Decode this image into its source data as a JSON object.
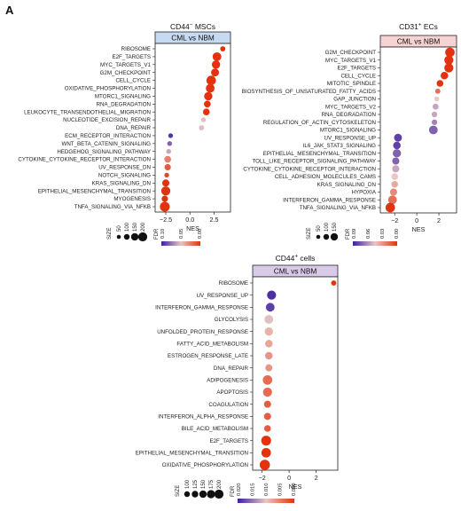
{
  "figure": {
    "panel_letter": "A"
  },
  "chart_data": [
    {
      "type": "scatter",
      "id": "msc",
      "title_base": "CD44",
      "title_sup": "−",
      "title_rest": " MSCs",
      "subtitle": "CML vs NBM",
      "subtitle_bg": "#c6daf2",
      "xlabel": "NES",
      "xticks": [
        -2.5,
        0.0,
        2.5
      ],
      "xlim": [
        -3.6,
        4.2
      ],
      "terms": [
        "RIBOSOME",
        "E2F_TARGETS",
        "MYC_TARGETS_V1",
        "G2M_CHECKPOINT",
        "CELL_CYCLE",
        "OXIDATIVE_PHOSPHORYLATION",
        "MTORC1_SIGNALING",
        "RNA_DEGRADATION",
        "LEUKOCYTE_TRANSENDOTHELIAL_MIGRATION",
        "NUCLEOTIDE_EXCISION_REPAIR",
        "DNA_REPAIR",
        "ECM_RECEPTOR_INTERACTION",
        "WNT_BETA_CATENIN_SIGNALING",
        "HEDGEHOG_SIGNALING_PATHWAY",
        "CYTOKINE_CYTOKINE_RECEPTOR_INTERACTION",
        "UV_RESPONSE_DN",
        "NOTCH_SIGNALING",
        "KRAS_SIGNALING_DN",
        "EPITHELIAL_MESENCHYMAL_TRANSITION",
        "MYOGENESIS",
        "TNFA_SIGNALING_VIA_NFKB"
      ],
      "nes": [
        3.4,
        2.8,
        2.7,
        2.6,
        2.2,
        2.1,
        1.9,
        1.8,
        1.7,
        1.4,
        1.2,
        -2.0,
        -2.1,
        -2.2,
        -2.3,
        -2.3,
        -2.4,
        -2.5,
        -2.5,
        -2.6,
        -2.6
      ],
      "size": [
        60,
        150,
        140,
        130,
        170,
        150,
        140,
        100,
        100,
        50,
        60,
        50,
        50,
        50,
        100,
        90,
        50,
        110,
        160,
        90,
        180
      ],
      "fdr": [
        0.0,
        0.0,
        0.0,
        0.0,
        0.0,
        0.0,
        0.0,
        0.0,
        0.0,
        0.07,
        0.08,
        0.14,
        0.12,
        0.09,
        0.04,
        0.02,
        0.01,
        0.0,
        0.0,
        0.0,
        0.0
      ],
      "size_legend": {
        "title": "SIZE",
        "values": [
          50,
          100,
          150,
          200
        ]
      },
      "color_legend": {
        "title": "FDR",
        "ticks": [
          "0.10",
          "0.05",
          "0.00"
        ],
        "max": 0.15
      }
    },
    {
      "type": "scatter",
      "id": "ec",
      "title_base": "CD31",
      "title_sup": "+",
      "title_rest": " ECs",
      "subtitle": "CML vs NBM",
      "subtitle_bg": "#f6d3d2",
      "xlabel": "NES",
      "xticks": [
        -2,
        0,
        2
      ],
      "xlim": [
        -3.3,
        3.6
      ],
      "terms": [
        "G2M_CHECKPOINT",
        "MYC_TARGETS_V1",
        "E2F_TARGETS",
        "CELL_CYCLE",
        "MITOTIC_SPINDLE",
        "BIOSYNTHESIS_OF_UNSATURATED_FATTY_ACIDS",
        "GAP_JUNCTION",
        "MYC_TARGETS_V2",
        "RNA_DEGRADATION",
        "REGULATION_OF_ACTIN_CYTOSKELETON",
        "MTORC1_SIGNALING",
        "UV_RESPONSE_UP",
        "IL6_JAK_STAT3_SIGNALING",
        "EPITHELIAL_MESENCHYMAL_TRANSITION",
        "TOLL_LIKE_RECEPTOR_SIGNALING_PATHWAY",
        "CYTOKINE_CYTOKINE_RECEPTOR_INTERACTION",
        "CELL_ADHESION_MOLECULES_CAMS",
        "KRAS_SIGNALING_DN",
        "HYPOXIA",
        "INTERFERON_GAMMA_RESPONSE",
        "TNFA_SIGNALING_VIA_NFKB"
      ],
      "nes": [
        3.0,
        2.9,
        2.9,
        2.5,
        2.1,
        1.9,
        1.8,
        1.7,
        1.6,
        1.6,
        1.5,
        -1.7,
        -1.8,
        -1.8,
        -1.9,
        -1.9,
        -2.0,
        -2.0,
        -2.1,
        -2.2,
        -2.4
      ],
      "size": [
        170,
        160,
        160,
        120,
        100,
        60,
        50,
        80,
        70,
        70,
        150,
        130,
        120,
        140,
        110,
        110,
        100,
        100,
        110,
        150,
        170
      ],
      "fdr": [
        0.0,
        0.0,
        0.0,
        0.0,
        0.0,
        0.02,
        0.05,
        0.06,
        0.06,
        0.07,
        0.08,
        0.09,
        0.09,
        0.08,
        0.08,
        0.06,
        0.05,
        0.04,
        0.03,
        0.02,
        0.0
      ],
      "size_legend": {
        "title": "SIZE",
        "values": [
          50,
          100,
          150
        ]
      },
      "color_legend": {
        "title": "FDR",
        "ticks": [
          "0.09",
          "0.06",
          "0.03",
          "0.00"
        ],
        "max": 0.1
      }
    },
    {
      "type": "scatter",
      "id": "cd44",
      "title_base": "CD44",
      "title_sup": "+",
      "title_rest": " cells",
      "subtitle": "CML vs NBM",
      "subtitle_bg": "#d9cbe8",
      "xlabel": "NES",
      "xticks": [
        -2,
        0,
        2
      ],
      "xlim": [
        -2.7,
        3.6
      ],
      "terms": [
        "RIBOSOME",
        "UV_RESPONSE_UP",
        "INTERFERON_GAMMA_RESPONSE",
        "GLYCOLYSIS",
        "UNFOLDED_PROTEIN_RESPONSE",
        "FATTY_ACID_METABOLISM",
        "ESTROGEN_RESPONSE_LATE",
        "DNA_REPAIR",
        "ADIPOGENESIS",
        "APOPTOSIS",
        "COAGULATION",
        "INTERFERON_ALPHA_RESPONSE",
        "BILE_ACID_METABOLISM",
        "E2F_TARGETS",
        "EPITHELIAL_MESENCHYMAL_TRANSITION",
        "OXIDATIVE_PHOSPHORYLATION"
      ],
      "nes": [
        3.3,
        -1.3,
        -1.4,
        -1.5,
        -1.5,
        -1.5,
        -1.5,
        -1.5,
        -1.6,
        -1.6,
        -1.6,
        -1.6,
        -1.6,
        -1.7,
        -1.7,
        -1.8
      ],
      "size": [
        60,
        160,
        150,
        150,
        140,
        120,
        120,
        110,
        170,
        160,
        110,
        110,
        100,
        180,
        170,
        190
      ],
      "fdr": [
        0.0,
        0.02,
        0.019,
        0.011,
        0.009,
        0.008,
        0.007,
        0.007,
        0.004,
        0.004,
        0.003,
        0.003,
        0.003,
        0.0,
        0.0,
        0.0
      ],
      "size_legend": {
        "title": "SIZE",
        "values": [
          100,
          125,
          150,
          175,
          200
        ]
      },
      "color_legend": {
        "title": "FDR",
        "ticks": [
          "0.020",
          "0.015",
          "0.010",
          "0.005",
          "0.000"
        ],
        "max": 0.021
      }
    }
  ]
}
